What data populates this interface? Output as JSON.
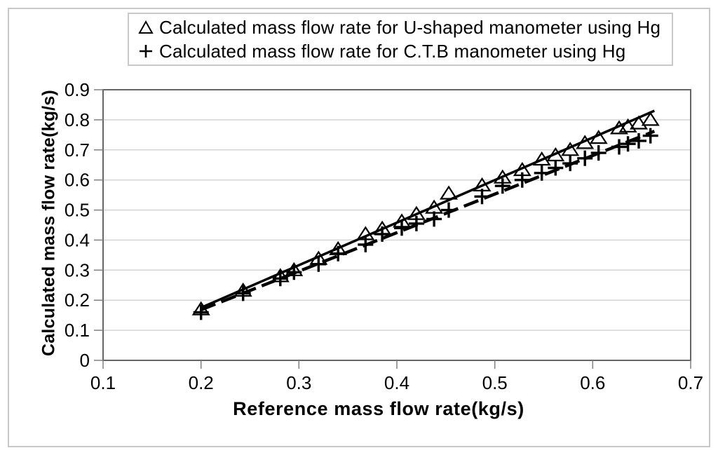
{
  "window": {
    "background": "#ffffff"
  },
  "legend": {
    "items": [
      {
        "icon": "triangle-up-marker-icon",
        "label": "Calculated mass flow rate for U-shaped manometer using Hg"
      },
      {
        "icon": "plus-marker-icon",
        "label": "Calculated mass flow rate for C.T.B manometer using Hg"
      }
    ]
  },
  "chart_data": {
    "type": "scatter",
    "title": "",
    "xlabel": "Reference mass flow rate(kg/s)",
    "ylabel": "Calculated mass flow rate(kg/s)",
    "xlim": [
      0.1,
      0.7
    ],
    "ylim": [
      0,
      0.9
    ],
    "x_ticks": [
      "0.1",
      "0.2",
      "0.3",
      "0.4",
      "0.5",
      "0.6",
      "0.7"
    ],
    "y_ticks": [
      "0",
      "0.1",
      "0.2",
      "0.3",
      "0.4",
      "0.5",
      "0.6",
      "0.7",
      "0.8",
      "0.9"
    ],
    "grid": "horizontal-only",
    "legend_position": "top-center",
    "colors": {
      "series": "#000000",
      "grid": "#d4d4d4",
      "axis": "#666666",
      "tick": "#808080",
      "legend_border": "#c9c9c9",
      "figure_border": "#c8c8c8"
    },
    "series": [
      {
        "id": "u-shaped",
        "name": "Calculated mass flow rate for U-shaped manometer using Hg",
        "marker": "triangle",
        "line": "solid",
        "points": [
          [
            0.2,
            0.17
          ],
          [
            0.243,
            0.232
          ],
          [
            0.281,
            0.28
          ],
          [
            0.295,
            0.3
          ],
          [
            0.32,
            0.338
          ],
          [
            0.34,
            0.37
          ],
          [
            0.368,
            0.42
          ],
          [
            0.385,
            0.438
          ],
          [
            0.405,
            0.462
          ],
          [
            0.42,
            0.487
          ],
          [
            0.438,
            0.508
          ],
          [
            0.453,
            0.555
          ],
          [
            0.487,
            0.582
          ],
          [
            0.508,
            0.608
          ],
          [
            0.528,
            0.633
          ],
          [
            0.548,
            0.668
          ],
          [
            0.562,
            0.682
          ],
          [
            0.577,
            0.7
          ],
          [
            0.592,
            0.723
          ],
          [
            0.606,
            0.74
          ],
          [
            0.627,
            0.772
          ],
          [
            0.636,
            0.778
          ],
          [
            0.647,
            0.788
          ],
          [
            0.659,
            0.8
          ]
        ],
        "trendline": {
          "x1": 0.2,
          "y1": 0.175,
          "x2": 0.663,
          "y2": 0.83
        }
      },
      {
        "id": "ctb",
        "name": "Calculated mass flow rate for C.T.B manometer using Hg",
        "marker": "plus",
        "line": "dashed",
        "points": [
          [
            0.2,
            0.16
          ],
          [
            0.243,
            0.223
          ],
          [
            0.281,
            0.272
          ],
          [
            0.295,
            0.293
          ],
          [
            0.32,
            0.32
          ],
          [
            0.34,
            0.355
          ],
          [
            0.368,
            0.385
          ],
          [
            0.385,
            0.42
          ],
          [
            0.405,
            0.44
          ],
          [
            0.42,
            0.455
          ],
          [
            0.438,
            0.47
          ],
          [
            0.453,
            0.5
          ],
          [
            0.487,
            0.545
          ],
          [
            0.508,
            0.58
          ],
          [
            0.528,
            0.6
          ],
          [
            0.548,
            0.623
          ],
          [
            0.562,
            0.64
          ],
          [
            0.577,
            0.655
          ],
          [
            0.592,
            0.672
          ],
          [
            0.606,
            0.69
          ],
          [
            0.627,
            0.71
          ],
          [
            0.636,
            0.72
          ],
          [
            0.647,
            0.73
          ],
          [
            0.659,
            0.747
          ]
        ],
        "trendline": {
          "x1": 0.2,
          "y1": 0.168,
          "x2": 0.663,
          "y2": 0.762
        }
      }
    ]
  }
}
